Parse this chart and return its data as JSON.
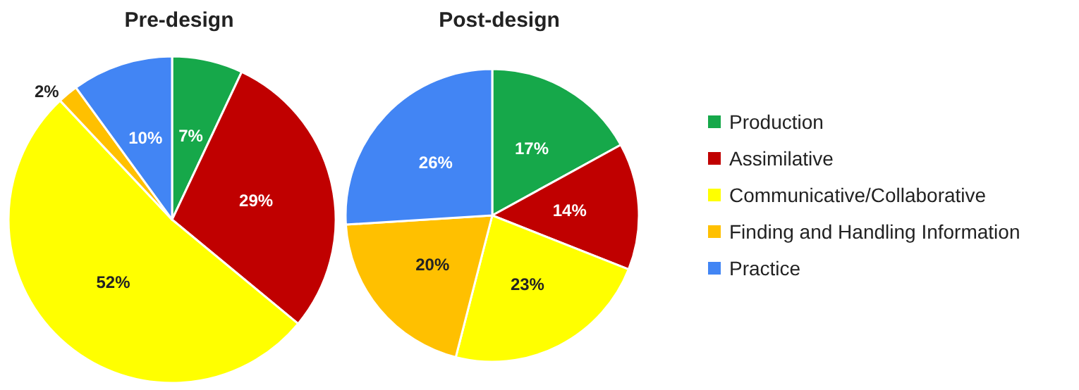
{
  "chart_data": [
    {
      "type": "pie",
      "title": "Pre-design",
      "categories": [
        null,
        null,
        null,
        null,
        null
      ],
      "values": [
        7,
        29,
        52,
        2,
        10
      ],
      "value_labels": [
        "7%",
        "29%",
        "52%",
        "2%",
        "10%"
      ],
      "colors": [
        "#16a84a",
        "#c00000",
        "#ffff00",
        "#ffc000",
        "#4285f4"
      ],
      "legend": false
    },
    {
      "type": "pie",
      "title": "Post-design",
      "categories": [
        "Production",
        "Assimilative",
        "Communicative/Collaborative",
        "Finding and Handling Information",
        "Practice"
      ],
      "values": [
        17,
        14,
        23,
        20,
        26
      ],
      "value_labels": [
        "17%",
        "14%",
        "23%",
        "20%",
        "26%"
      ],
      "colors": [
        "#16a84a",
        "#c00000",
        "#ffff00",
        "#ffc000",
        "#4285f4"
      ],
      "legend": "right"
    }
  ]
}
